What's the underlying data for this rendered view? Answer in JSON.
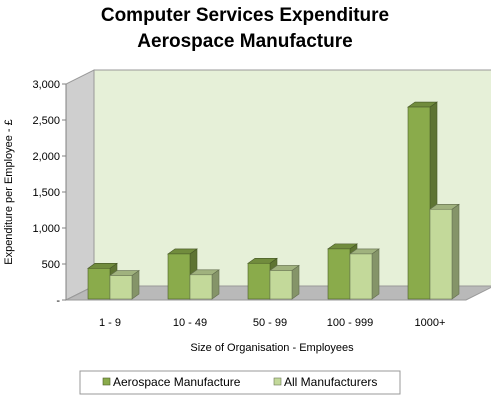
{
  "chart_data": {
    "type": "bar",
    "title_lines": [
      "Computer Services Expenditure",
      "Aerospace Manufacture"
    ],
    "xlabel": "Size of Organisation - Employees",
    "ylabel": "Expenditure per Employee - £",
    "categories": [
      "1 - 9",
      "10 - 49",
      "50 - 99",
      "100 - 999",
      "1000+"
    ],
    "series": [
      {
        "name": "Aerospace Manufacture",
        "values": [
          440,
          640,
          510,
          710,
          2680
        ],
        "color": "#8aab4b"
      },
      {
        "name": "All Manufacturers",
        "values": [
          340,
          350,
          410,
          640,
          1260
        ],
        "color": "#c3d99a"
      }
    ],
    "ylim": [
      0,
      3000
    ],
    "yticks": [
      0,
      500,
      1000,
      1500,
      2000,
      2500,
      3000
    ],
    "ytick_labels": [
      "-",
      "500",
      "1,000",
      "1,500",
      "2,000",
      "2,500",
      "3,000"
    ],
    "grid": false,
    "legend_position": "bottom",
    "wall_color": "#e6f0d8",
    "floor_color": "#b9b9b9"
  }
}
